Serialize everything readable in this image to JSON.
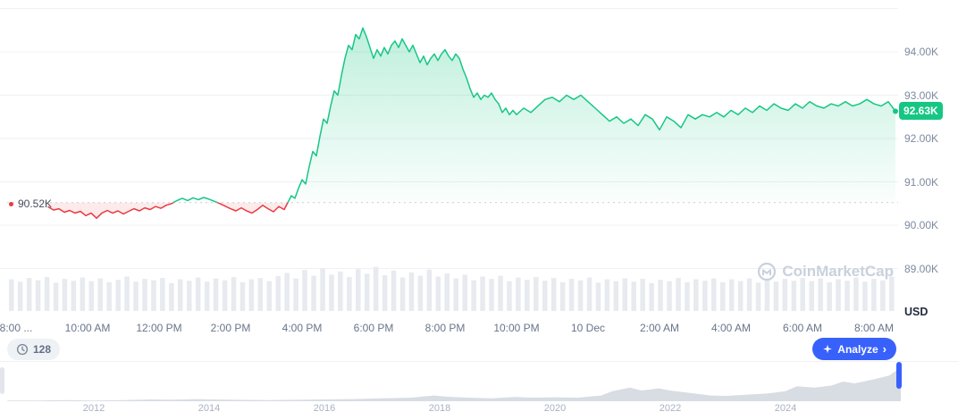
{
  "watermark": {
    "text": "CoinMarketCap"
  },
  "footer": {
    "watchers_count": "128",
    "analyze_label": "Analyze",
    "analyze_chevron": "›"
  },
  "icons": {
    "watchers": "history-clock-icon",
    "analyze": "sparkle-icon",
    "logo": "coinmarketcap-logo-icon",
    "baseline": "red-dot-icon"
  },
  "chart_data": {
    "type": "line",
    "unit": "USD",
    "current_price_label": "92.63K",
    "current_price_value": 92.63,
    "baseline_label": "90.52K",
    "baseline_value": 90.52,
    "y_axis": {
      "tick_labels": [
        "94.00K",
        "93.00K",
        "92.00K",
        "91.00K",
        "90.00K",
        "89.00K"
      ],
      "tick_values": [
        94,
        93,
        92,
        91,
        90,
        89
      ],
      "grid_values": [
        95,
        94,
        93,
        92,
        91,
        90,
        89
      ],
      "range": [
        89,
        95
      ]
    },
    "x_axis": {
      "tick_labels": [
        "8:00 ...",
        "10:00 AM",
        "12:00 PM",
        "2:00 PM",
        "4:00 PM",
        "6:00 PM",
        "8:00 PM",
        "10:00 PM",
        "10 Dec",
        "2:00 AM",
        "4:00 AM",
        "6:00 AM",
        "8:00 AM"
      ],
      "hours_span": 24.7
    },
    "series": {
      "name": "price",
      "points_hours_price": [
        [
          0.9,
          90.42
        ],
        [
          1.05,
          90.35
        ],
        [
          1.2,
          90.38
        ],
        [
          1.35,
          90.3
        ],
        [
          1.5,
          90.34
        ],
        [
          1.65,
          90.28
        ],
        [
          1.8,
          90.32
        ],
        [
          1.95,
          90.22
        ],
        [
          2.1,
          90.28
        ],
        [
          2.25,
          90.16
        ],
        [
          2.4,
          90.28
        ],
        [
          2.55,
          90.34
        ],
        [
          2.7,
          90.28
        ],
        [
          2.85,
          90.33
        ],
        [
          3,
          90.26
        ],
        [
          3.15,
          90.32
        ],
        [
          3.3,
          90.38
        ],
        [
          3.45,
          90.33
        ],
        [
          3.6,
          90.4
        ],
        [
          3.75,
          90.36
        ],
        [
          3.9,
          90.43
        ],
        [
          4.05,
          90.39
        ],
        [
          4.2,
          90.46
        ],
        [
          4.35,
          90.5
        ],
        [
          4.5,
          90.57
        ],
        [
          4.65,
          90.62
        ],
        [
          4.8,
          90.57
        ],
        [
          4.95,
          90.63
        ],
        [
          5.1,
          90.59
        ],
        [
          5.25,
          90.64
        ],
        [
          5.4,
          90.6
        ],
        [
          5.55,
          90.55
        ],
        [
          5.7,
          90.5
        ],
        [
          5.85,
          90.44
        ],
        [
          6,
          90.38
        ],
        [
          6.15,
          90.33
        ],
        [
          6.3,
          90.4
        ],
        [
          6.45,
          90.33
        ],
        [
          6.6,
          90.28
        ],
        [
          6.75,
          90.36
        ],
        [
          6.9,
          90.46
        ],
        [
          7.05,
          90.38
        ],
        [
          7.2,
          90.31
        ],
        [
          7.35,
          90.43
        ],
        [
          7.5,
          90.36
        ],
        [
          7.6,
          90.52
        ],
        [
          7.7,
          90.68
        ],
        [
          7.8,
          90.62
        ],
        [
          7.9,
          90.85
        ],
        [
          8,
          91.05
        ],
        [
          8.1,
          90.95
        ],
        [
          8.2,
          91.35
        ],
        [
          8.3,
          91.7
        ],
        [
          8.4,
          91.6
        ],
        [
          8.5,
          92.05
        ],
        [
          8.6,
          92.45
        ],
        [
          8.7,
          92.35
        ],
        [
          8.8,
          92.75
        ],
        [
          8.9,
          93.1
        ],
        [
          9,
          93
        ],
        [
          9.1,
          93.45
        ],
        [
          9.2,
          93.85
        ],
        [
          9.3,
          94.15
        ],
        [
          9.4,
          94.05
        ],
        [
          9.5,
          94.4
        ],
        [
          9.6,
          94.3
        ],
        [
          9.7,
          94.55
        ],
        [
          9.8,
          94.35
        ],
        [
          9.9,
          94.1
        ],
        [
          10,
          93.85
        ],
        [
          10.1,
          94.05
        ],
        [
          10.2,
          93.9
        ],
        [
          10.3,
          94.1
        ],
        [
          10.4,
          93.95
        ],
        [
          10.5,
          94.15
        ],
        [
          10.6,
          94.25
        ],
        [
          10.7,
          94.1
        ],
        [
          10.8,
          94.3
        ],
        [
          10.9,
          94.15
        ],
        [
          11,
          94
        ],
        [
          11.1,
          94.15
        ],
        [
          11.2,
          93.95
        ],
        [
          11.3,
          93.75
        ],
        [
          11.4,
          93.9
        ],
        [
          11.5,
          93.7
        ],
        [
          11.6,
          93.85
        ],
        [
          11.7,
          93.95
        ],
        [
          11.8,
          93.8
        ],
        [
          11.9,
          93.95
        ],
        [
          12,
          94.05
        ],
        [
          12.1,
          93.9
        ],
        [
          12.2,
          93.8
        ],
        [
          12.3,
          93.95
        ],
        [
          12.4,
          93.85
        ],
        [
          12.5,
          93.6
        ],
        [
          12.6,
          93.4
        ],
        [
          12.7,
          93.15
        ],
        [
          12.8,
          92.95
        ],
        [
          12.9,
          93.05
        ],
        [
          13,
          92.9
        ],
        [
          13.1,
          93
        ],
        [
          13.2,
          92.95
        ],
        [
          13.3,
          93.05
        ],
        [
          13.4,
          92.9
        ],
        [
          13.5,
          92.8
        ],
        [
          13.6,
          92.6
        ],
        [
          13.7,
          92.7
        ],
        [
          13.8,
          92.55
        ],
        [
          13.9,
          92.65
        ],
        [
          14,
          92.55
        ],
        [
          14.2,
          92.7
        ],
        [
          14.4,
          92.6
        ],
        [
          14.6,
          92.75
        ],
        [
          14.8,
          92.9
        ],
        [
          15,
          92.95
        ],
        [
          15.2,
          92.85
        ],
        [
          15.4,
          93
        ],
        [
          15.6,
          92.9
        ],
        [
          15.8,
          93
        ],
        [
          16,
          92.85
        ],
        [
          16.2,
          92.7
        ],
        [
          16.4,
          92.55
        ],
        [
          16.6,
          92.4
        ],
        [
          16.8,
          92.5
        ],
        [
          17,
          92.35
        ],
        [
          17.2,
          92.45
        ],
        [
          17.4,
          92.3
        ],
        [
          17.6,
          92.55
        ],
        [
          17.8,
          92.45
        ],
        [
          18,
          92.2
        ],
        [
          18.2,
          92.5
        ],
        [
          18.4,
          92.4
        ],
        [
          18.6,
          92.25
        ],
        [
          18.8,
          92.55
        ],
        [
          19,
          92.45
        ],
        [
          19.2,
          92.55
        ],
        [
          19.4,
          92.5
        ],
        [
          19.6,
          92.6
        ],
        [
          19.8,
          92.5
        ],
        [
          20,
          92.65
        ],
        [
          20.2,
          92.55
        ],
        [
          20.4,
          92.7
        ],
        [
          20.6,
          92.6
        ],
        [
          20.8,
          92.75
        ],
        [
          21,
          92.65
        ],
        [
          21.2,
          92.8
        ],
        [
          21.4,
          92.7
        ],
        [
          21.6,
          92.65
        ],
        [
          21.8,
          92.8
        ],
        [
          22,
          92.7
        ],
        [
          22.2,
          92.85
        ],
        [
          22.4,
          92.75
        ],
        [
          22.6,
          92.7
        ],
        [
          22.8,
          92.8
        ],
        [
          23,
          92.75
        ],
        [
          23.2,
          92.85
        ],
        [
          23.4,
          92.75
        ],
        [
          23.6,
          92.8
        ],
        [
          23.8,
          92.9
        ],
        [
          24,
          92.8
        ],
        [
          24.2,
          92.75
        ],
        [
          24.4,
          92.85
        ],
        [
          24.6,
          92.63
        ]
      ]
    },
    "volume_bars": [
      0.68,
      0.63,
      0.71,
      0.66,
      0.73,
      0.61,
      0.69,
      0.65,
      0.72,
      0.64,
      0.7,
      0.62,
      0.67,
      0.74,
      0.63,
      0.69,
      0.66,
      0.71,
      0.6,
      0.68,
      0.65,
      0.72,
      0.63,
      0.7,
      0.66,
      0.73,
      0.62,
      0.68,
      0.71,
      0.64,
      0.75,
      0.82,
      0.7,
      0.88,
      0.76,
      0.92,
      0.78,
      0.85,
      0.73,
      0.9,
      0.8,
      0.95,
      0.77,
      0.87,
      0.72,
      0.83,
      0.76,
      0.89,
      0.74,
      0.81,
      0.7,
      0.78,
      0.66,
      0.74,
      0.69,
      0.76,
      0.64,
      0.72,
      0.67,
      0.73,
      0.65,
      0.71,
      0.62,
      0.69,
      0.66,
      0.72,
      0.61,
      0.68,
      0.64,
      0.7,
      0.63,
      0.69,
      0.6,
      0.67,
      0.64,
      0.71,
      0.62,
      0.68,
      0.65,
      0.7,
      0.62,
      0.68,
      0.64,
      0.7,
      0.61,
      0.67,
      0.63,
      0.69,
      0.65,
      0.71,
      0.64,
      0.7,
      0.62,
      0.68,
      0.65,
      0.72,
      0.63,
      0.69,
      0.66,
      0.74
    ],
    "range_selector": {
      "year_labels": [
        2012,
        2014,
        2016,
        2018,
        2020,
        2022,
        2024
      ],
      "points_year_value": [
        [
          2010.5,
          0.02
        ],
        [
          2011,
          0.02
        ],
        [
          2011.5,
          0.03
        ],
        [
          2012,
          0.02
        ],
        [
          2012.5,
          0.03
        ],
        [
          2013,
          0.05
        ],
        [
          2013.3,
          0.04
        ],
        [
          2013.8,
          0.06
        ],
        [
          2014,
          0.05
        ],
        [
          2014.5,
          0.04
        ],
        [
          2015,
          0.03
        ],
        [
          2015.5,
          0.04
        ],
        [
          2016,
          0.05
        ],
        [
          2016.5,
          0.06
        ],
        [
          2017,
          0.08
        ],
        [
          2017.5,
          0.1
        ],
        [
          2017.9,
          0.16
        ],
        [
          2018.2,
          0.12
        ],
        [
          2018.5,
          0.1
        ],
        [
          2018.9,
          0.08
        ],
        [
          2019.3,
          0.12
        ],
        [
          2019.6,
          0.1
        ],
        [
          2020,
          0.11
        ],
        [
          2020.4,
          0.1
        ],
        [
          2020.8,
          0.16
        ],
        [
          2021,
          0.28
        ],
        [
          2021.3,
          0.38
        ],
        [
          2021.5,
          0.3
        ],
        [
          2021.8,
          0.36
        ],
        [
          2022,
          0.3
        ],
        [
          2022.3,
          0.24
        ],
        [
          2022.7,
          0.16
        ],
        [
          2023,
          0.15
        ],
        [
          2023.3,
          0.18
        ],
        [
          2023.7,
          0.22
        ],
        [
          2024,
          0.28
        ],
        [
          2024.2,
          0.42
        ],
        [
          2024.5,
          0.38
        ],
        [
          2024.8,
          0.44
        ],
        [
          2025,
          0.55
        ],
        [
          2025.2,
          0.5
        ],
        [
          2025.5,
          0.6
        ],
        [
          2025.8,
          0.72
        ],
        [
          2026,
          0.95
        ]
      ]
    },
    "colors": {
      "up": "#16c784",
      "down": "#ea3943",
      "accent_blue": "#3861fb",
      "axis_text": "#7d8aa0",
      "grid": "#eef0f4",
      "volume": "#e7eaef",
      "baseline_line": "#c9cfd9",
      "range_fill": "#d8dce3",
      "watermark": "#c9d1dd",
      "badge_bg": "#16c784"
    }
  }
}
